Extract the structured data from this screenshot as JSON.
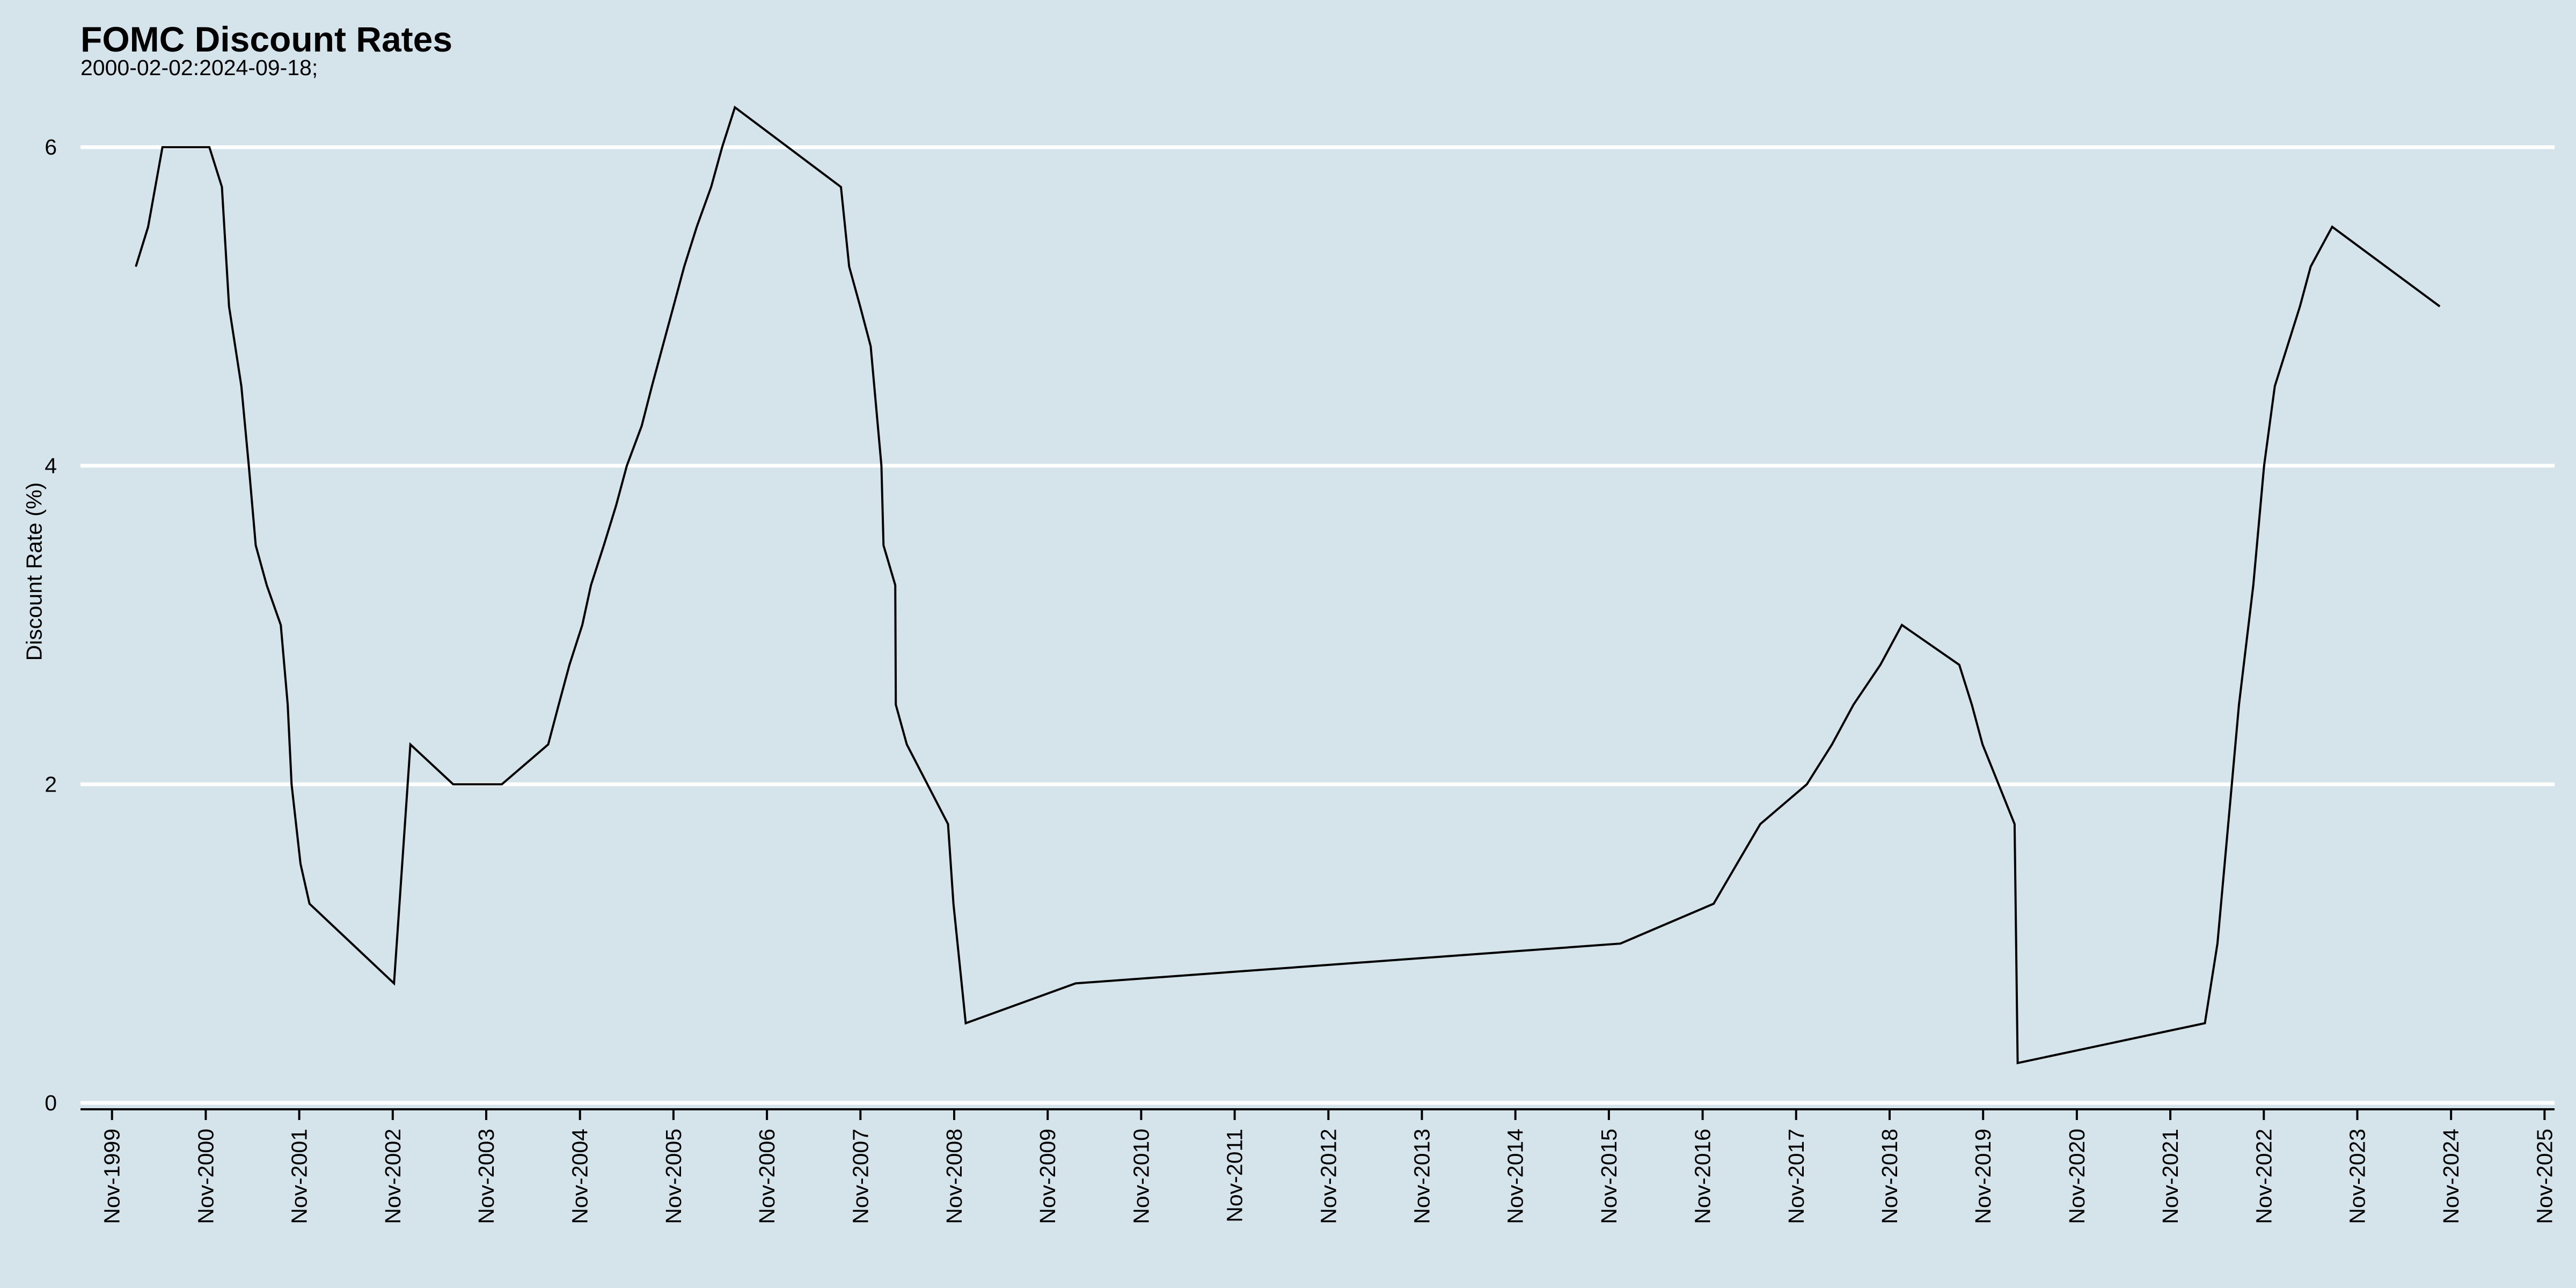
{
  "colors": {
    "background": "#d5e4eb",
    "grid": "#ffffff",
    "line": "#000000",
    "axis": "#000000"
  },
  "chart_data": {
    "type": "line",
    "title": "FOMC Discount Rates",
    "subtitle": "2000-02-02:2024-09-18;",
    "xlabel": "",
    "ylabel": "Discount Rate (%)",
    "ylim": [
      0,
      6.25
    ],
    "yticks": [
      0,
      2,
      4,
      6
    ],
    "grid": "horizontal",
    "legend": "none",
    "xticks": [
      "1999-11-01",
      "2000-11-01",
      "2001-11-01",
      "2002-11-01",
      "2003-11-01",
      "2004-11-01",
      "2005-11-01",
      "2006-11-01",
      "2007-11-01",
      "2008-11-01",
      "2009-11-01",
      "2010-11-01",
      "2011-11-01",
      "2012-11-01",
      "2013-11-01",
      "2014-11-01",
      "2015-11-01",
      "2016-11-01",
      "2017-11-01",
      "2018-11-01",
      "2019-11-01",
      "2020-11-01",
      "2021-11-01",
      "2022-11-01",
      "2023-11-01",
      "2024-11-01",
      "2025-11-01"
    ],
    "xtick_labels": [
      "Nov-1999",
      "Nov-2000",
      "Nov-2001",
      "Nov-2002",
      "Nov-2003",
      "Nov-2004",
      "Nov-2005",
      "Nov-2006",
      "Nov-2007",
      "Nov-2008",
      "Nov-2009",
      "Nov-2010",
      "Nov-2011",
      "Nov-2012",
      "Nov-2013",
      "Nov-2014",
      "Nov-2015",
      "Nov-2016",
      "Nov-2017",
      "Nov-2018",
      "Nov-2019",
      "Nov-2020",
      "Nov-2021",
      "Nov-2022",
      "Nov-2023",
      "Nov-2024",
      "Nov-2025"
    ],
    "series": [
      {
        "x": [
          "2000-02-02",
          "2000-03-21",
          "2000-05-16",
          "2000-11-15",
          "2001-01-03",
          "2001-01-31",
          "2001-03-20",
          "2001-04-18",
          "2001-05-15",
          "2001-06-27",
          "2001-08-21",
          "2001-09-17",
          "2001-10-02",
          "2001-11-06",
          "2001-12-11",
          "2002-11-06",
          "2003-01-09",
          "2003-06-25",
          "2003-07-01",
          "2004-01-01",
          "2004-06-30",
          "2004-08-10",
          "2004-09-21",
          "2004-11-10",
          "2004-12-14",
          "2005-02-02",
          "2005-03-22",
          "2005-05-03",
          "2005-06-30",
          "2005-08-09",
          "2005-09-20",
          "2005-11-01",
          "2005-12-13",
          "2006-01-31",
          "2006-03-28",
          "2006-05-10",
          "2006-06-29",
          "2007-08-17",
          "2007-09-18",
          "2007-10-31",
          "2007-12-11",
          "2008-01-22",
          "2008-01-30",
          "2008-03-16",
          "2008-03-18",
          "2008-04-30",
          "2008-10-08",
          "2008-10-29",
          "2008-12-16",
          "2010-02-18",
          "2015-12-16",
          "2016-12-14",
          "2017-03-15",
          "2017-06-14",
          "2017-12-13",
          "2018-03-21",
          "2018-06-13",
          "2018-09-26",
          "2018-12-19",
          "2019-07-31",
          "2019-09-18",
          "2019-10-30",
          "2020-03-03",
          "2020-03-15",
          "2022-03-16",
          "2022-05-04",
          "2022-06-15",
          "2022-07-27",
          "2022-09-21",
          "2022-11-02",
          "2022-12-14",
          "2023-02-01",
          "2023-03-22",
          "2023-05-03",
          "2023-07-26",
          "2024-09-18"
        ],
        "values": [
          5.25,
          5.5,
          6.0,
          6.0,
          5.75,
          5.0,
          4.5,
          4.0,
          3.5,
          3.25,
          3.0,
          2.5,
          2.0,
          1.5,
          1.25,
          0.75,
          2.25,
          2.0,
          2.0,
          2.0,
          2.25,
          2.5,
          2.75,
          3.0,
          3.25,
          3.5,
          3.75,
          4.0,
          4.25,
          4.5,
          4.75,
          5.0,
          5.25,
          5.5,
          5.75,
          6.0,
          6.25,
          5.75,
          5.25,
          5.0,
          4.75,
          4.0,
          3.5,
          3.25,
          2.5,
          2.25,
          1.75,
          1.25,
          0.5,
          0.75,
          1.0,
          1.25,
          1.5,
          1.75,
          2.0,
          2.25,
          2.5,
          2.75,
          3.0,
          2.75,
          2.5,
          2.25,
          1.75,
          0.25,
          0.5,
          1.0,
          1.75,
          2.5,
          3.25,
          4.0,
          4.5,
          4.75,
          5.0,
          5.25,
          5.5,
          5.0
        ]
      }
    ]
  }
}
